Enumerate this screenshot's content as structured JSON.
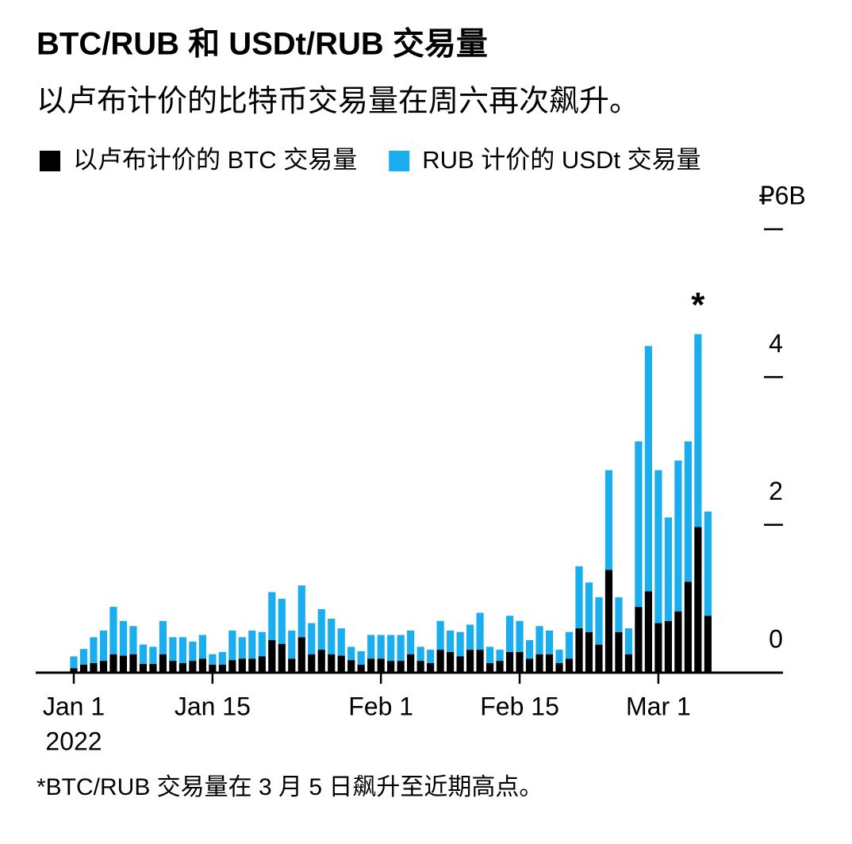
{
  "chart_data": {
    "type": "bar",
    "stacked": true,
    "title": "BTC/RUB 和 USDt/RUB 交易量",
    "subtitle": "以卢布计价的比特币交易量在周六再次飙升。",
    "footnote": "*BTC/RUB 交易量在 3 月 5 日飙升至近期高点。",
    "annotation": {
      "x": "2022-03-05",
      "text": "*"
    },
    "legend": "top-left",
    "categories": [
      "2022-01-01",
      "2022-01-02",
      "2022-01-03",
      "2022-01-04",
      "2022-01-05",
      "2022-01-06",
      "2022-01-07",
      "2022-01-08",
      "2022-01-09",
      "2022-01-10",
      "2022-01-11",
      "2022-01-12",
      "2022-01-13",
      "2022-01-14",
      "2022-01-15",
      "2022-01-16",
      "2022-01-17",
      "2022-01-18",
      "2022-01-19",
      "2022-01-20",
      "2022-01-21",
      "2022-01-22",
      "2022-01-23",
      "2022-01-24",
      "2022-01-25",
      "2022-01-26",
      "2022-01-27",
      "2022-01-28",
      "2022-01-29",
      "2022-01-30",
      "2022-01-31",
      "2022-02-01",
      "2022-02-02",
      "2022-02-03",
      "2022-02-04",
      "2022-02-05",
      "2022-02-06",
      "2022-02-07",
      "2022-02-08",
      "2022-02-09",
      "2022-02-10",
      "2022-02-11",
      "2022-02-12",
      "2022-02-13",
      "2022-02-14",
      "2022-02-15",
      "2022-02-16",
      "2022-02-17",
      "2022-02-18",
      "2022-02-19",
      "2022-02-20",
      "2022-02-21",
      "2022-02-22",
      "2022-02-23",
      "2022-02-24",
      "2022-02-25",
      "2022-02-26",
      "2022-02-27",
      "2022-02-28",
      "2022-03-01",
      "2022-03-02",
      "2022-03-03",
      "2022-03-04",
      "2022-03-05",
      "2022-03-06"
    ],
    "series": [
      {
        "name": "以卢布计价的 BTC 交易量",
        "color": "#000000",
        "values": [
          0.06,
          0.11,
          0.13,
          0.16,
          0.25,
          0.23,
          0.25,
          0.12,
          0.12,
          0.25,
          0.16,
          0.13,
          0.16,
          0.19,
          0.11,
          0.11,
          0.17,
          0.19,
          0.19,
          0.22,
          0.44,
          0.39,
          0.19,
          0.48,
          0.25,
          0.31,
          0.25,
          0.23,
          0.17,
          0.11,
          0.19,
          0.19,
          0.16,
          0.16,
          0.25,
          0.16,
          0.13,
          0.31,
          0.28,
          0.22,
          0.31,
          0.31,
          0.13,
          0.16,
          0.28,
          0.28,
          0.19,
          0.25,
          0.25,
          0.13,
          0.19,
          0.6,
          0.55,
          0.38,
          1.39,
          0.55,
          0.25,
          0.89,
          1.1,
          0.67,
          0.7,
          0.83,
          1.23,
          1.97,
          0.77
        ]
      },
      {
        "name": "RUB 计价的 USDt 交易量",
        "color": "#1aaeef",
        "values": [
          0.16,
          0.21,
          0.35,
          0.41,
          0.64,
          0.47,
          0.38,
          0.26,
          0.23,
          0.45,
          0.32,
          0.35,
          0.26,
          0.32,
          0.14,
          0.17,
          0.4,
          0.29,
          0.38,
          0.33,
          0.65,
          0.61,
          0.38,
          0.7,
          0.42,
          0.55,
          0.48,
          0.37,
          0.18,
          0.18,
          0.32,
          0.32,
          0.35,
          0.35,
          0.32,
          0.19,
          0.18,
          0.39,
          0.29,
          0.33,
          0.34,
          0.5,
          0.22,
          0.15,
          0.49,
          0.42,
          0.25,
          0.38,
          0.32,
          0.18,
          0.36,
          0.84,
          0.67,
          0.64,
          1.35,
          0.47,
          0.35,
          2.24,
          3.32,
          2.07,
          1.4,
          2.04,
          1.9,
          2.61,
          1.41
        ]
      }
    ],
    "xticks": [
      {
        "value": "2022-01-01",
        "label": "Jan 1"
      },
      {
        "value": "2022-01-15",
        "label": "Jan 15"
      },
      {
        "value": "2022-02-01",
        "label": "Feb 1"
      },
      {
        "value": "2022-02-15",
        "label": "Feb 15"
      },
      {
        "value": "2022-03-01",
        "label": "Mar 1"
      }
    ],
    "year": "2022",
    "ylim": [
      0,
      6
    ],
    "yticks": [
      0,
      2,
      4,
      {
        "value": 6,
        "label": "₽6B"
      }
    ],
    "y_axis_side": "right",
    "grid": false
  }
}
